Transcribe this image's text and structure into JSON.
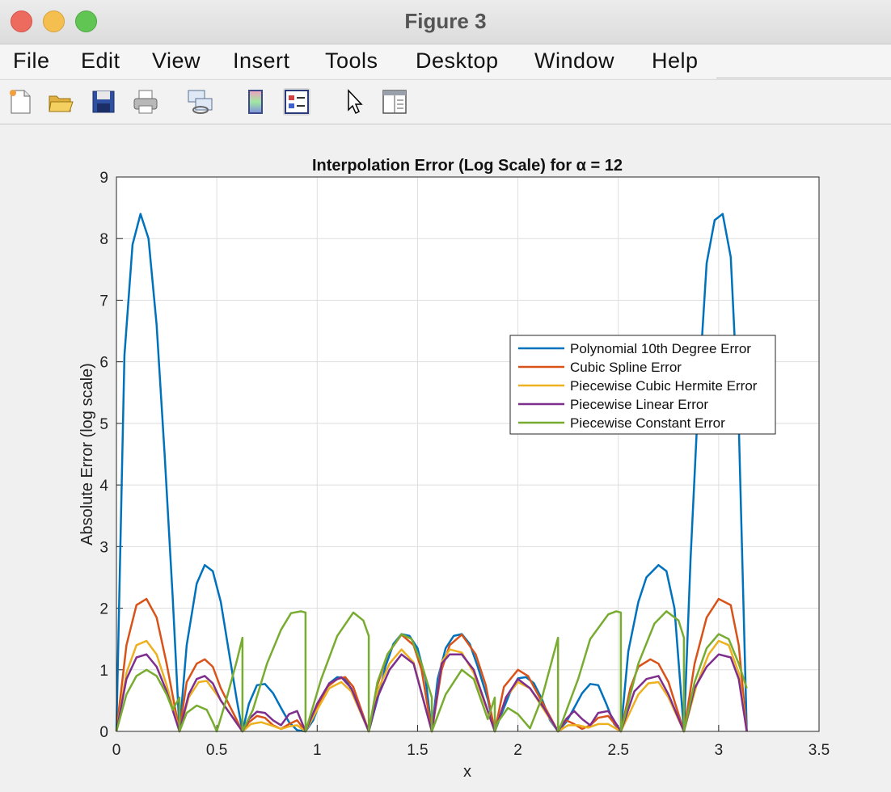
{
  "window": {
    "title": "Figure 3"
  },
  "menu": {
    "items": [
      "File",
      "Edit",
      "View",
      "Insert",
      "Tools",
      "Desktop",
      "Window",
      "Help"
    ]
  },
  "toolbar": {
    "icons": [
      "new-figure-icon",
      "open-folder-icon",
      "save-icon",
      "print-icon",
      "link-icon",
      "colorbar-icon",
      "legend-icon",
      "pointer-icon",
      "property-inspector-icon"
    ]
  },
  "colors": {
    "poly": "#0072BD",
    "spline": "#D95319",
    "hermite": "#EDB120",
    "linear": "#7E2F8E",
    "constant": "#77AC30"
  },
  "chart_data": {
    "type": "line",
    "title": "Interpolation Error (Log Scale) for α = 12",
    "xlabel": "x",
    "ylabel": "Absolute Error (log scale)",
    "xlim": [
      0,
      3.5
    ],
    "ylim": [
      0,
      9
    ],
    "xticks": [
      "0",
      "0.5",
      "1",
      "1.5",
      "2",
      "2.5",
      "3",
      "3.5"
    ],
    "yticks": [
      "0",
      "1",
      "2",
      "3",
      "4",
      "5",
      "6",
      "7",
      "8",
      "9"
    ],
    "grid": true,
    "legend_position": "right-center",
    "series": [
      {
        "name": "Polynomial 10th Degree Error",
        "x": [
          0,
          0.04,
          0.08,
          0.12,
          0.16,
          0.2,
          0.24,
          0.28,
          0.314,
          0.35,
          0.4,
          0.44,
          0.48,
          0.52,
          0.56,
          0.6,
          0.628,
          0.66,
          0.7,
          0.74,
          0.78,
          0.82,
          0.86,
          0.9,
          0.942,
          0.98,
          1.02,
          1.06,
          1.1,
          1.14,
          1.18,
          1.22,
          1.257,
          1.3,
          1.34,
          1.38,
          1.42,
          1.46,
          1.5,
          1.54,
          1.571,
          1.6,
          1.64,
          1.68,
          1.72,
          1.76,
          1.8,
          1.85,
          1.885,
          1.92,
          1.96,
          2.0,
          2.04,
          2.08,
          2.12,
          2.16,
          2.2,
          2.2,
          2.24,
          2.28,
          2.32,
          2.36,
          2.4,
          2.44,
          2.48,
          2.513,
          2.55,
          2.6,
          2.64,
          2.7,
          2.74,
          2.78,
          2.827,
          2.86,
          2.9,
          2.94,
          2.98,
          3.02,
          3.06,
          3.1,
          3.14
        ],
        "y": [
          0,
          6.1,
          7.9,
          8.4,
          8.0,
          6.6,
          4.5,
          2.2,
          0,
          1.4,
          2.4,
          2.7,
          2.6,
          2.1,
          1.3,
          0.5,
          0,
          0.45,
          0.75,
          0.77,
          0.62,
          0.38,
          0.15,
          0.02,
          0,
          0.18,
          0.52,
          0.78,
          0.88,
          0.86,
          0.62,
          0.3,
          0,
          0.52,
          1.05,
          1.42,
          1.58,
          1.55,
          1.35,
          0.85,
          0,
          0.85,
          1.35,
          1.55,
          1.58,
          1.42,
          1.05,
          0.52,
          0,
          0.3,
          0.62,
          0.86,
          0.88,
          0.78,
          0.52,
          0.18,
          0,
          0,
          0.15,
          0.38,
          0.62,
          0.77,
          0.75,
          0.45,
          0.12,
          0,
          1.3,
          2.1,
          2.5,
          2.7,
          2.6,
          2.0,
          0,
          2.8,
          5.5,
          7.6,
          8.3,
          8.4,
          7.7,
          5.0,
          0
        ]
      },
      {
        "name": "Cubic Spline Error",
        "x": [
          0,
          0.05,
          0.1,
          0.15,
          0.2,
          0.25,
          0.314,
          0.35,
          0.4,
          0.44,
          0.48,
          0.52,
          0.628,
          0.66,
          0.7,
          0.74,
          0.78,
          0.82,
          0.86,
          0.9,
          0.942,
          0.98,
          1.05,
          1.1,
          1.14,
          1.18,
          1.257,
          1.3,
          1.35,
          1.42,
          1.48,
          1.52,
          1.571,
          1.62,
          1.66,
          1.72,
          1.79,
          1.84,
          1.885,
          1.93,
          2.0,
          2.05,
          2.1,
          2.15,
          2.2,
          2.24,
          2.28,
          2.32,
          2.36,
          2.4,
          2.45,
          2.513,
          2.56,
          2.6,
          2.66,
          2.7,
          2.75,
          2.827,
          2.88,
          2.94,
          3.0,
          3.06,
          3.1,
          3.14
        ],
        "y": [
          0,
          1.4,
          2.05,
          2.15,
          1.85,
          1.1,
          0,
          0.8,
          1.1,
          1.17,
          1.05,
          0.7,
          0,
          0.15,
          0.25,
          0.22,
          0.1,
          0.04,
          0.12,
          0.18,
          0,
          0.25,
          0.72,
          0.85,
          0.88,
          0.72,
          0,
          0.75,
          1.25,
          1.57,
          1.4,
          1.0,
          0,
          1.0,
          1.4,
          1.57,
          1.25,
          0.75,
          0,
          0.72,
          1.0,
          0.9,
          0.6,
          0.3,
          0,
          0.18,
          0.12,
          0.04,
          0.1,
          0.22,
          0.25,
          0,
          0.7,
          1.05,
          1.17,
          1.1,
          0.8,
          0,
          1.1,
          1.85,
          2.15,
          2.05,
          1.4,
          0
        ]
      },
      {
        "name": "Piecewise Cubic Hermite Error",
        "x": [
          0,
          0.05,
          0.1,
          0.15,
          0.2,
          0.25,
          0.314,
          0.36,
          0.41,
          0.45,
          0.5,
          0.628,
          0.67,
          0.72,
          0.77,
          0.82,
          0.86,
          0.9,
          0.942,
          1.0,
          1.06,
          1.12,
          1.17,
          1.257,
          1.3,
          1.36,
          1.42,
          1.48,
          1.571,
          1.62,
          1.66,
          1.72,
          1.78,
          1.885,
          1.94,
          2.0,
          2.06,
          2.13,
          2.2,
          2.25,
          2.3,
          2.35,
          2.4,
          2.45,
          2.513,
          2.6,
          2.65,
          2.7,
          2.75,
          2.827,
          2.89,
          2.95,
          3.0,
          3.05,
          3.1,
          3.14
        ],
        "y": [
          0,
          0.95,
          1.4,
          1.47,
          1.25,
          0.75,
          0,
          0.55,
          0.8,
          0.82,
          0.6,
          0,
          0.12,
          0.15,
          0.1,
          0.04,
          0.08,
          0.1,
          0,
          0.35,
          0.7,
          0.8,
          0.65,
          0,
          0.65,
          1.1,
          1.33,
          1.12,
          0,
          1.12,
          1.33,
          1.28,
          0.95,
          0,
          0.55,
          0.8,
          0.7,
          0.35,
          0,
          0.1,
          0.1,
          0.06,
          0.12,
          0.12,
          0,
          0.6,
          0.78,
          0.8,
          0.55,
          0,
          0.75,
          1.25,
          1.47,
          1.4,
          0.95,
          0
        ]
      },
      {
        "name": "Piecewise Linear Error",
        "x": [
          0,
          0.05,
          0.1,
          0.15,
          0.2,
          0.25,
          0.314,
          0.36,
          0.4,
          0.44,
          0.48,
          0.52,
          0.628,
          0.66,
          0.7,
          0.74,
          0.78,
          0.82,
          0.86,
          0.9,
          0.942,
          1.0,
          1.06,
          1.12,
          1.17,
          1.257,
          1.3,
          1.36,
          1.42,
          1.48,
          1.571,
          1.62,
          1.66,
          1.72,
          1.78,
          1.885,
          1.94,
          2.0,
          2.06,
          2.13,
          2.2,
          2.24,
          2.28,
          2.32,
          2.36,
          2.4,
          2.45,
          2.513,
          2.58,
          2.64,
          2.7,
          2.75,
          2.827,
          2.88,
          2.94,
          3.0,
          3.06,
          3.1,
          3.14
        ],
        "y": [
          0,
          0.85,
          1.2,
          1.25,
          1.05,
          0.65,
          0,
          0.6,
          0.85,
          0.9,
          0.78,
          0.5,
          0,
          0.2,
          0.32,
          0.3,
          0.18,
          0.1,
          0.28,
          0.33,
          0,
          0.45,
          0.78,
          0.88,
          0.7,
          0,
          0.55,
          1.0,
          1.25,
          1.1,
          0,
          1.1,
          1.25,
          1.25,
          1.0,
          0,
          0.55,
          0.85,
          0.7,
          0.38,
          0,
          0.2,
          0.33,
          0.2,
          0.1,
          0.3,
          0.33,
          0,
          0.65,
          0.85,
          0.9,
          0.6,
          0,
          0.7,
          1.05,
          1.25,
          1.2,
          0.85,
          0
        ]
      },
      {
        "name": "Piecewise Constant Error",
        "x": [
          0,
          0.05,
          0.1,
          0.15,
          0.2,
          0.25,
          0.28,
          0.314,
          0.314,
          0.35,
          0.4,
          0.45,
          0.48,
          0.5,
          0.55,
          0.6,
          0.628,
          0.628,
          0.68,
          0.75,
          0.82,
          0.87,
          0.92,
          0.942,
          0.942,
          1.02,
          1.1,
          1.18,
          1.23,
          1.257,
          1.257,
          1.3,
          1.35,
          1.42,
          1.47,
          1.52,
          1.571,
          1.571,
          1.64,
          1.72,
          1.78,
          1.85,
          1.885,
          1.885,
          1.9,
          1.95,
          2.0,
          2.06,
          2.12,
          2.2,
          2.2,
          2.22,
          2.3,
          2.36,
          2.45,
          2.49,
          2.513,
          2.513,
          2.6,
          2.68,
          2.74,
          2.8,
          2.827,
          2.827,
          2.88,
          2.94,
          3.0,
          3.05,
          3.1,
          3.14
        ],
        "y": [
          0,
          0.6,
          0.9,
          1.0,
          0.9,
          0.6,
          0.35,
          0.55,
          0,
          0.3,
          0.42,
          0.35,
          0.15,
          0,
          0.55,
          1.15,
          1.52,
          0,
          0.35,
          1.1,
          1.65,
          1.92,
          1.95,
          1.93,
          0,
          0.85,
          1.55,
          1.93,
          1.8,
          1.55,
          0,
          0.8,
          1.25,
          1.58,
          1.5,
          1.1,
          0.55,
          0,
          0.6,
          1.0,
          0.85,
          0.2,
          0.55,
          0,
          0.15,
          0.38,
          0.28,
          0.05,
          0.55,
          1.52,
          0,
          0.15,
          0.85,
          1.5,
          1.9,
          1.95,
          1.93,
          0,
          1.1,
          1.75,
          1.95,
          1.8,
          1.52,
          0,
          0.8,
          1.35,
          1.58,
          1.5,
          1.1,
          0.7
        ]
      }
    ]
  }
}
